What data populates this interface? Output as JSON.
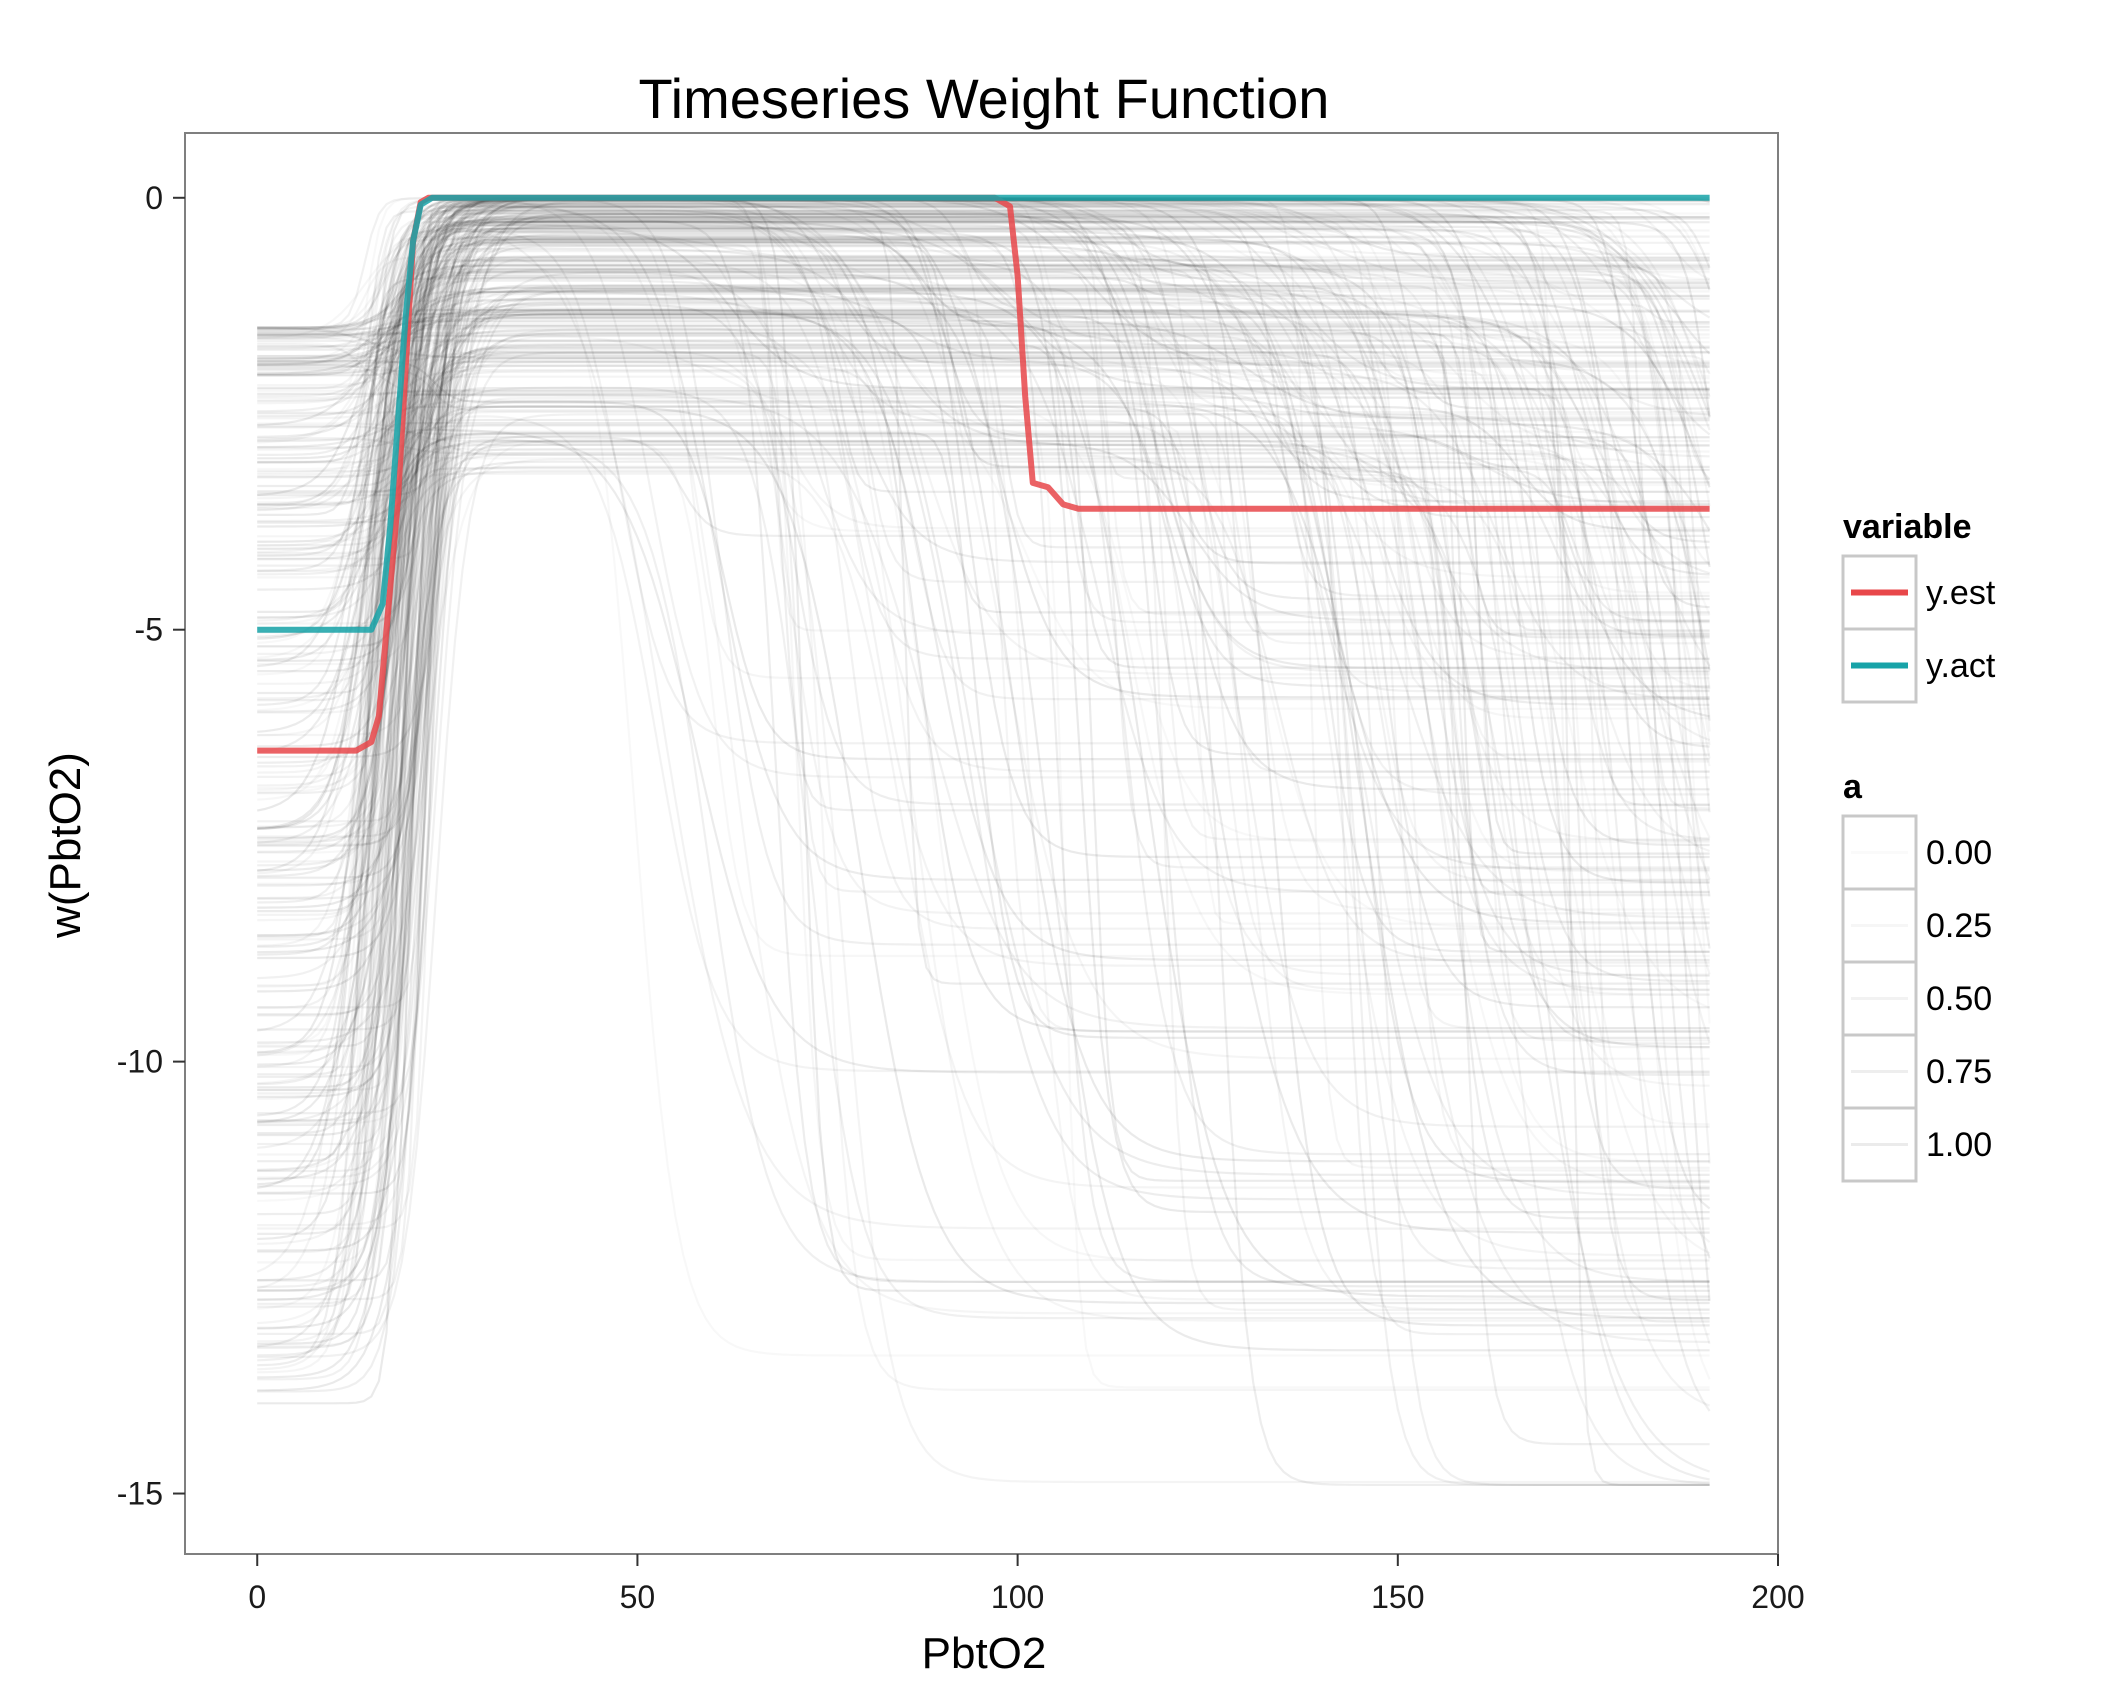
{
  "chart_data": {
    "type": "line",
    "title": "Timeseries Weight Function",
    "xlabel": "PbtO2",
    "ylabel": "w(PbtO2)",
    "xlim": [
      -9.5,
      200
    ],
    "ylim": [
      -15.7,
      0.75
    ],
    "x_ticks": [
      "0",
      "50",
      "100",
      "150",
      "200"
    ],
    "x_tick_values": [
      0,
      50,
      100,
      150,
      200
    ],
    "y_ticks": [
      "0",
      "-5",
      "-10",
      "-15"
    ],
    "y_tick_values": [
      0,
      -5,
      -10,
      -15
    ],
    "grid": false,
    "legend_position": "right",
    "series": [
      {
        "name": "y.est",
        "color": "#e8474a",
        "points": [
          [
            0,
            -6.4
          ],
          [
            13,
            -6.4
          ],
          [
            15,
            -6.3
          ],
          [
            16,
            -6.0
          ],
          [
            17,
            -5.0
          ],
          [
            18.5,
            -3.5
          ],
          [
            19.5,
            -2.0
          ],
          [
            20.5,
            -0.5
          ],
          [
            21.5,
            -0.05
          ],
          [
            22.5,
            0
          ],
          [
            97,
            0
          ],
          [
            99,
            -0.1
          ],
          [
            100,
            -0.9
          ],
          [
            101,
            -2.3
          ],
          [
            102,
            -3.3
          ],
          [
            104,
            -3.35
          ],
          [
            106,
            -3.55
          ],
          [
            108,
            -3.6
          ],
          [
            191,
            -3.6
          ]
        ]
      },
      {
        "name": "y.act",
        "color": "#17a3a8",
        "points": [
          [
            0,
            -5
          ],
          [
            15,
            -5
          ],
          [
            16.5,
            -4.7
          ],
          [
            17.5,
            -3.8
          ],
          [
            18.5,
            -2.6
          ],
          [
            19.5,
            -1.4
          ],
          [
            20.5,
            -0.5
          ],
          [
            21.5,
            -0.08
          ],
          [
            23,
            0
          ],
          [
            191,
            0
          ]
        ]
      }
    ],
    "background_trajectories": {
      "description_source": "many faint black weight curves",
      "count": 320,
      "x_max": 191,
      "color": "#000000"
    },
    "legend": {
      "variable": {
        "title": "variable",
        "entries": [
          {
            "label": "y.est",
            "color": "#e8474a"
          },
          {
            "label": "y.act",
            "color": "#17a3a8"
          }
        ]
      },
      "a": {
        "title": "a",
        "entries": [
          {
            "label": "0.00",
            "alpha": 0.0
          },
          {
            "label": "0.25",
            "alpha": 0.25
          },
          {
            "label": "0.50",
            "alpha": 0.5
          },
          {
            "label": "0.75",
            "alpha": 0.75
          },
          {
            "label": "1.00",
            "alpha": 1.0
          }
        ]
      }
    }
  }
}
